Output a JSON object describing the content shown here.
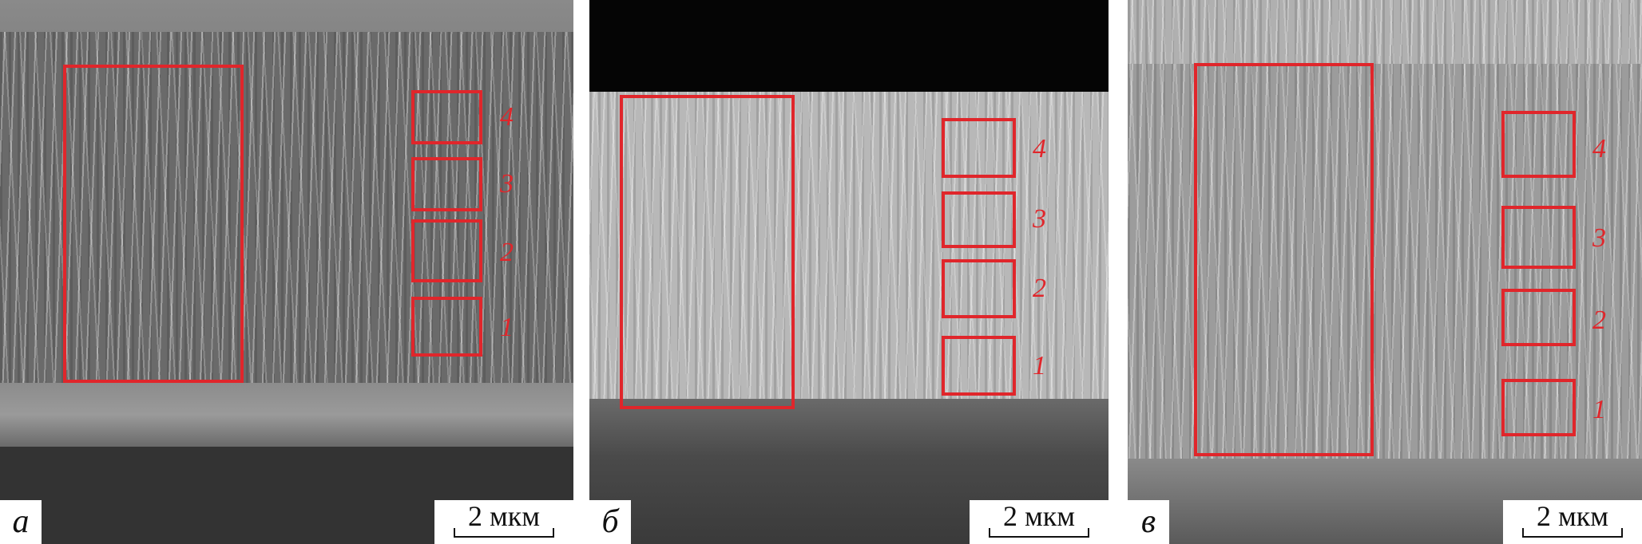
{
  "panels": [
    {
      "letter": "а",
      "scale_label": "2 мкм",
      "region_labels": [
        "4",
        "3",
        "2",
        "1"
      ]
    },
    {
      "letter": "б",
      "scale_label": "2 мкм",
      "region_labels": [
        "4",
        "3",
        "2",
        "1"
      ]
    },
    {
      "letter": "в",
      "scale_label": "2 мкм",
      "region_labels": [
        "4",
        "3",
        "2",
        "1"
      ]
    }
  ],
  "colors": {
    "annotation": "#e0262b"
  }
}
